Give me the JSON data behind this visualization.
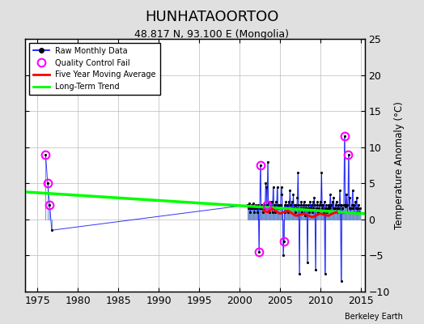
{
  "title": "HUNHATAOORTOO",
  "subtitle": "48.817 N, 93.100 E (Mongolia)",
  "ylabel": "Temperature Anomaly (°C)",
  "credit": "Berkeley Earth",
  "xlim": [
    1973.5,
    2015.5
  ],
  "ylim": [
    -10,
    25
  ],
  "yticks": [
    -10,
    -5,
    0,
    5,
    10,
    15,
    20,
    25
  ],
  "xticks": [
    1975,
    1980,
    1985,
    1990,
    1995,
    2000,
    2005,
    2010,
    2015
  ],
  "bg_color": "#e0e0e0",
  "plot_bg_color": "#ffffff",
  "raw_x": [
    1976.0,
    1976.25,
    1976.5,
    1976.75,
    2001.0,
    2001.083,
    2001.167,
    2001.25,
    2001.333,
    2001.417,
    2001.5,
    2001.583,
    2001.667,
    2001.75,
    2001.833,
    2001.917,
    2002.0,
    2002.083,
    2002.167,
    2002.25,
    2002.333,
    2002.417,
    2002.5,
    2002.583,
    2002.667,
    2002.75,
    2002.833,
    2002.917,
    2003.0,
    2003.083,
    2003.167,
    2003.25,
    2003.333,
    2003.417,
    2003.5,
    2003.583,
    2003.667,
    2003.75,
    2003.833,
    2003.917,
    2004.0,
    2004.083,
    2004.167,
    2004.25,
    2004.333,
    2004.417,
    2004.5,
    2004.583,
    2004.667,
    2004.75,
    2004.833,
    2004.917,
    2005.0,
    2005.083,
    2005.167,
    2005.25,
    2005.333,
    2005.417,
    2005.5,
    2005.583,
    2005.667,
    2005.75,
    2005.833,
    2005.917,
    2006.0,
    2006.083,
    2006.167,
    2006.25,
    2006.333,
    2006.417,
    2006.5,
    2006.583,
    2006.667,
    2006.75,
    2006.833,
    2006.917,
    2007.0,
    2007.083,
    2007.167,
    2007.25,
    2007.333,
    2007.417,
    2007.5,
    2007.583,
    2007.667,
    2007.75,
    2007.833,
    2007.917,
    2008.0,
    2008.083,
    2008.167,
    2008.25,
    2008.333,
    2008.417,
    2008.5,
    2008.583,
    2008.667,
    2008.75,
    2008.833,
    2008.917,
    2009.0,
    2009.083,
    2009.167,
    2009.25,
    2009.333,
    2009.417,
    2009.5,
    2009.583,
    2009.667,
    2009.75,
    2009.833,
    2009.917,
    2010.0,
    2010.083,
    2010.167,
    2010.25,
    2010.333,
    2010.417,
    2010.5,
    2010.583,
    2010.667,
    2010.75,
    2010.833,
    2010.917,
    2011.0,
    2011.083,
    2011.167,
    2011.25,
    2011.333,
    2011.417,
    2011.5,
    2011.583,
    2011.667,
    2011.75,
    2011.833,
    2011.917,
    2012.0,
    2012.083,
    2012.167,
    2012.25,
    2012.333,
    2012.417,
    2012.5,
    2012.583,
    2012.667,
    2012.75,
    2012.833,
    2012.917,
    2013.0,
    2013.083,
    2013.167,
    2013.25,
    2013.333,
    2013.417,
    2013.5,
    2013.583,
    2013.667,
    2013.75,
    2013.833,
    2013.917,
    2014.0,
    2014.083,
    2014.167,
    2014.25,
    2014.333,
    2014.417,
    2014.5,
    2014.583,
    2014.667,
    2014.75,
    2014.833,
    2014.917
  ],
  "raw_y": [
    9.0,
    5.0,
    2.0,
    -1.5,
    2.0,
    1.5,
    1.8,
    2.2,
    1.0,
    1.5,
    2.0,
    1.5,
    1.8,
    2.2,
    1.0,
    1.5,
    2.0,
    1.5,
    1.8,
    1.0,
    2.0,
    -4.5,
    1.5,
    7.5,
    2.0,
    1.5,
    2.0,
    1.0,
    2.0,
    1.5,
    1.8,
    5.0,
    4.5,
    2.0,
    8.0,
    1.5,
    2.5,
    1.0,
    1.5,
    2.0,
    2.5,
    1.0,
    4.5,
    1.5,
    2.0,
    1.0,
    2.5,
    1.5,
    4.5,
    2.0,
    1.5,
    2.0,
    1.5,
    2.0,
    4.5,
    3.5,
    1.5,
    -5.0,
    -3.0,
    2.0,
    1.0,
    2.5,
    1.5,
    2.0,
    1.0,
    2.5,
    1.5,
    4.0,
    2.0,
    1.5,
    2.5,
    1.5,
    3.5,
    1.5,
    2.0,
    1.0,
    2.0,
    1.5,
    3.0,
    6.5,
    2.0,
    -7.5,
    1.5,
    2.0,
    2.5,
    1.0,
    1.5,
    2.0,
    2.5,
    0.5,
    1.5,
    2.0,
    1.5,
    -6.0,
    2.0,
    1.5,
    1.0,
    2.5,
    1.5,
    2.0,
    1.0,
    2.5,
    1.5,
    3.0,
    2.0,
    -7.0,
    1.5,
    2.0,
    2.5,
    1.0,
    1.5,
    2.0,
    2.5,
    2.0,
    6.5,
    1.5,
    2.0,
    1.0,
    2.5,
    -7.5,
    1.5,
    2.0,
    1.0,
    1.5,
    2.0,
    1.5,
    1.8,
    3.5,
    2.0,
    1.0,
    2.5,
    1.5,
    3.0,
    1.0,
    1.5,
    2.0,
    2.5,
    1.0,
    1.5,
    2.0,
    1.5,
    4.0,
    2.0,
    -8.5,
    2.0,
    1.5,
    1.0,
    2.0,
    11.5,
    2.0,
    1.8,
    3.5,
    2.0,
    1.0,
    9.0,
    1.5,
    3.0,
    1.0,
    1.5,
    2.0,
    4.0,
    1.5,
    2.0,
    1.0,
    2.5,
    1.5,
    3.0,
    1.0,
    1.5,
    2.0,
    1.0,
    1.5
  ],
  "qc_fail_x": [
    1976.0,
    1976.25,
    1976.5,
    2002.417,
    2002.583,
    2003.417,
    2005.5,
    2013.0,
    2013.417
  ],
  "qc_fail_y": [
    9.0,
    5.0,
    2.0,
    -4.5,
    7.5,
    2.0,
    -3.0,
    11.5,
    9.0
  ],
  "moving_avg_x": [
    2003.0,
    2003.5,
    2004.0,
    2005.0,
    2006.0,
    2007.0,
    2008.0,
    2009.0,
    2010.0,
    2011.0,
    2011.5,
    2012.0
  ],
  "moving_avg_y": [
    1.2,
    1.0,
    1.5,
    0.8,
    1.2,
    0.5,
    0.8,
    0.3,
    0.8,
    0.5,
    0.8,
    1.0
  ],
  "trend_x": [
    1973.5,
    2015.5
  ],
  "trend_y": [
    3.8,
    0.8
  ]
}
